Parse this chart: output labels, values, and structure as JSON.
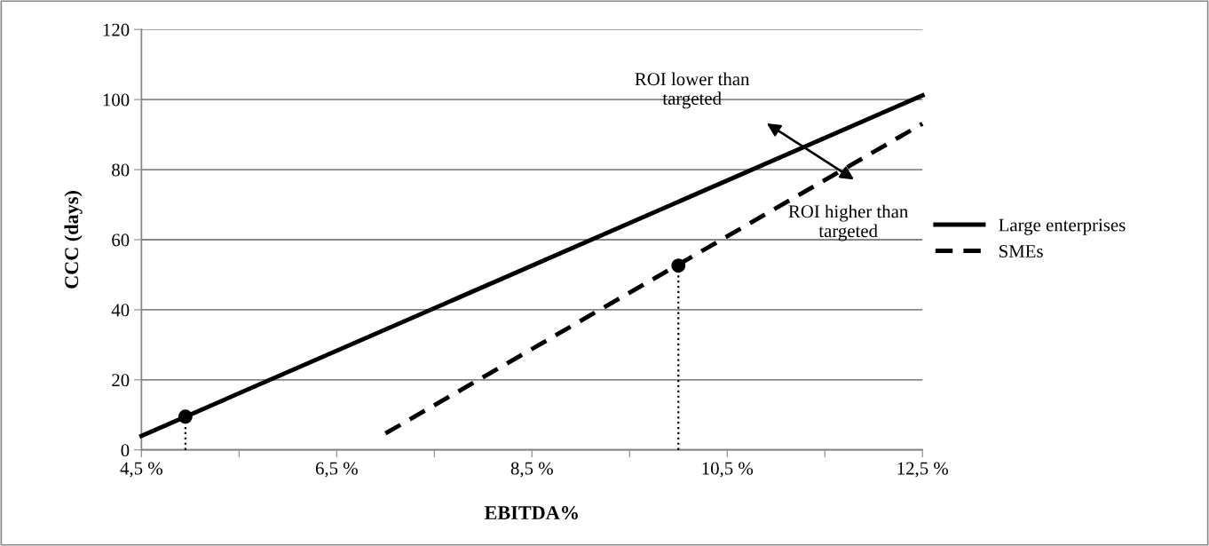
{
  "chart_data": {
    "type": "line",
    "xlabel": "EBITDA%",
    "ylabel": "CCC (days)",
    "xlim": [
      4.5,
      12.5
    ],
    "xticks": [
      {
        "value": 4.5,
        "label": "4,5 %"
      },
      {
        "value": 5.5,
        "label": null
      },
      {
        "value": 6.5,
        "label": "6,5 %"
      },
      {
        "value": 7.5,
        "label": null
      },
      {
        "value": 8.5,
        "label": "8,5 %"
      },
      {
        "value": 9.5,
        "label": null
      },
      {
        "value": 10.5,
        "label": "10,5 %"
      },
      {
        "value": 11.5,
        "label": null
      },
      {
        "value": 12.5,
        "label": "12,5 %"
      }
    ],
    "ylim": [
      0,
      120
    ],
    "yticks": [
      0,
      20,
      40,
      60,
      80,
      100,
      120
    ],
    "grid": "y",
    "legend": "right",
    "series": [
      {
        "name": "Large enterprises",
        "color": "#000000",
        "line_style": "solid",
        "x": [
          4.5,
          12.5
        ],
        "values": [
          4,
          101.2
        ]
      },
      {
        "name": "SMEs",
        "color": "#000000",
        "line_style": "dashed",
        "x": [
          7.0,
          12.5
        ],
        "values": [
          4.7,
          93.1
        ]
      },
      {
        "type": "line",
        "color": "#000000",
        "line_style": "dotted",
        "x": [
          4.95,
          4.95
        ],
        "values": [
          0,
          9.5
        ]
      },
      {
        "type": "line",
        "color": "#000000",
        "line_style": "dotted",
        "x": [
          10.0,
          10.0
        ],
        "values": [
          0,
          52.6
        ]
      },
      {
        "type": "scatter",
        "color": "#000000",
        "marker": "circle",
        "x": [
          4.95,
          10.0
        ],
        "values": [
          9.5,
          52.6
        ]
      }
    ],
    "annotations": [
      "ROI lower than\ntargeted",
      "ROI higher than\ntargeted"
    ]
  }
}
